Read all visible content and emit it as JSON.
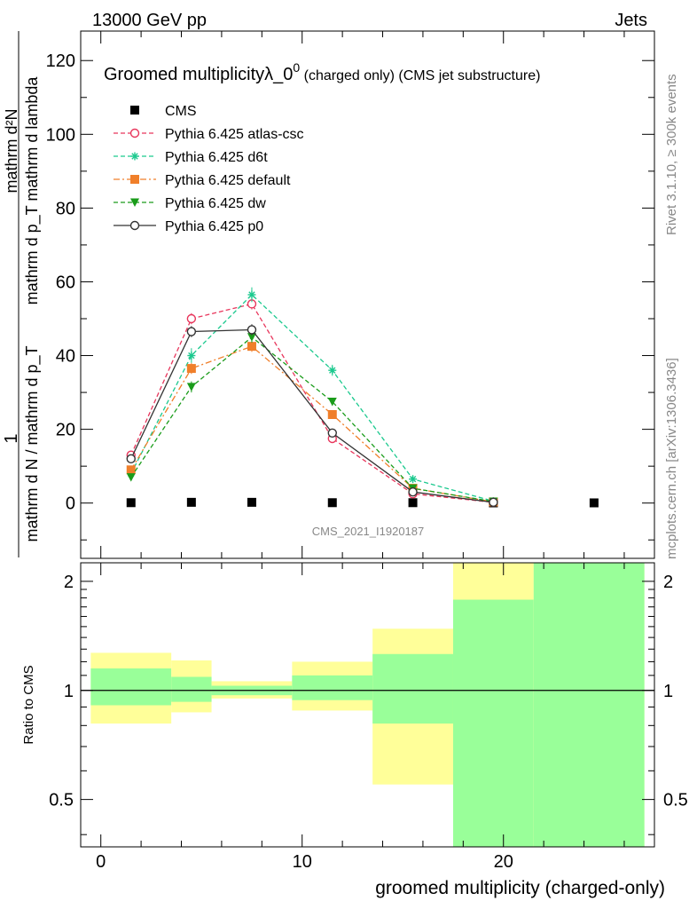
{
  "header": {
    "left": "13000 GeV pp",
    "right": "Jets"
  },
  "side_labels": {
    "rivet": "Rivet 3.1.10, ≥ 300k events",
    "mcplots": "mcplots.cern.ch [arXiv:1306.3436]"
  },
  "watermark": "CMS_2021_I1920187",
  "chart_data": [
    {
      "type": "line",
      "title": "Groomed multiplicityλ_0",
      "title_sup": "0",
      "title_suffix": " (charged only) (CMS jet substructure)",
      "ylabel": "1 / mathrm d N / mathrm d p_T mathrm d p_T mathrm d lambda mathrm d^2N",
      "ylabel_numerator": "mathrm d²N",
      "ylabel_numerator_sub": "mathrm d p_T mathrm d lambda",
      "ylabel_denominator": "mathrm d N / mathrm d p_T",
      "ylabel_one": "1",
      "xlabel": "groomed multiplicity (charged-only)",
      "xlim": [
        -1,
        27.5
      ],
      "ylim": [
        -15,
        128
      ],
      "yticks": [
        0,
        20,
        40,
        60,
        80,
        100,
        120
      ],
      "xticks": [
        0,
        10,
        20
      ],
      "legend_position": "top-left",
      "series": [
        {
          "name": "CMS",
          "color": "#000000",
          "marker": "square",
          "line": "none",
          "x": [
            1.5,
            4.5,
            7.5,
            11.5,
            15.5,
            19.5,
            24.5
          ],
          "y": [
            0.1,
            0.2,
            0.2,
            0.1,
            0.1,
            0.05,
            0.05
          ],
          "yerr": [
            0,
            0,
            0,
            0,
            0,
            0,
            0
          ]
        },
        {
          "name": "Pythia 6.425 atlas-csc",
          "color": "#e8365c",
          "marker": "open-circle",
          "line": "dash",
          "x": [
            1.5,
            4.5,
            7.5,
            11.5,
            15.5,
            19.5
          ],
          "y": [
            13,
            50,
            54,
            17.5,
            2.5,
            0.2
          ],
          "yerr": [
            1.0,
            1.5,
            1.5,
            1.0,
            0.4,
            0.1
          ]
        },
        {
          "name": "Pythia 6.425 d6t",
          "color": "#1bc98e",
          "marker": "star",
          "line": "dash",
          "x": [
            1.5,
            4.5,
            7.5,
            11.5,
            15.5,
            19.5
          ],
          "y": [
            8,
            40,
            56.5,
            36,
            6.5,
            0.5
          ],
          "yerr": [
            0.8,
            2.0,
            2.0,
            1.5,
            0.5,
            0.1
          ]
        },
        {
          "name": "Pythia 6.425 default",
          "color": "#f07f2a",
          "marker": "square",
          "line": "dashdot",
          "x": [
            1.5,
            4.5,
            7.5,
            11.5,
            15.5,
            19.5
          ],
          "y": [
            9,
            36.5,
            42.5,
            24,
            4,
            0.3
          ],
          "yerr": [
            0.8,
            1.5,
            1.5,
            1.0,
            0.4,
            0.1
          ]
        },
        {
          "name": "Pythia 6.425 dw",
          "color": "#1a9c1a",
          "marker": "triangle-down",
          "line": "dash",
          "x": [
            1.5,
            4.5,
            7.5,
            11.5,
            15.5,
            19.5
          ],
          "y": [
            7,
            31.5,
            45,
            27.5,
            4,
            0.4
          ],
          "yerr": [
            0.7,
            1.5,
            1.5,
            1.0,
            0.4,
            0.1
          ]
        },
        {
          "name": "Pythia 6.425 p0",
          "color": "#333333",
          "marker": "open-circle",
          "line": "solid",
          "x": [
            1.5,
            4.5,
            7.5,
            11.5,
            15.5,
            19.5
          ],
          "y": [
            12,
            46.5,
            47,
            19,
            3,
            0.2
          ],
          "yerr": [
            1.0,
            1.5,
            1.5,
            1.0,
            0.4,
            0.1
          ]
        }
      ]
    },
    {
      "type": "area",
      "ylabel": "Ratio to CMS",
      "xlabel": "groomed multiplicity (charged-only)",
      "yscale": "log",
      "ylim": [
        0.37,
        2.25
      ],
      "yticks": [
        0.5,
        1,
        2
      ],
      "xlim": [
        -1,
        27.5
      ],
      "band_colors": {
        "outer": "#ffff99",
        "inner": "#99ff99",
        "reference": "#000000"
      },
      "bins": [
        {
          "xlow": -0.5,
          "xhigh": 3.5,
          "outer_low": 0.81,
          "outer_high": 1.27,
          "inner_low": 0.91,
          "inner_high": 1.15
        },
        {
          "xlow": 3.5,
          "xhigh": 5.5,
          "outer_low": 0.87,
          "outer_high": 1.21,
          "inner_low": 0.93,
          "inner_high": 1.09
        },
        {
          "xlow": 5.5,
          "xhigh": 9.5,
          "outer_low": 0.95,
          "outer_high": 1.06,
          "inner_low": 0.97,
          "inner_high": 1.03
        },
        {
          "xlow": 9.5,
          "xhigh": 13.5,
          "outer_low": 0.88,
          "outer_high": 1.2,
          "inner_low": 0.94,
          "inner_high": 1.1
        },
        {
          "xlow": 13.5,
          "xhigh": 17.5,
          "outer_low": 0.55,
          "outer_high": 1.48,
          "inner_low": 0.81,
          "inner_high": 1.26
        },
        {
          "xlow": 17.5,
          "xhigh": 21.5,
          "outer_low": 0.37,
          "outer_high": 2.25,
          "inner_low": 0.37,
          "inner_high": 1.78
        },
        {
          "xlow": 21.5,
          "xhigh": 27.0,
          "outer_low": 0.37,
          "outer_high": 2.25,
          "inner_low": 0.37,
          "inner_high": 2.25
        }
      ]
    }
  ]
}
